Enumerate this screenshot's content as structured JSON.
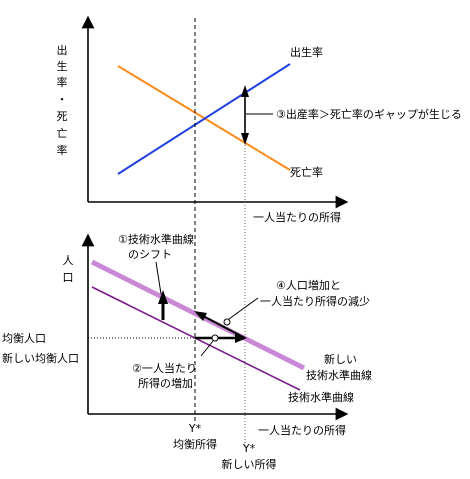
{
  "top_panel": {
    "y_axis_label": [
      "出",
      "生",
      "率",
      "・",
      "死",
      "亡",
      "率"
    ],
    "x_axis_label": "一人当たりの所得",
    "birth_rate_label": "出生率",
    "death_rate_label": "死亡率",
    "gap_annotation": "③出産率＞死亡率のギャップが生じる",
    "colors": {
      "birth_rate": "#1f3fe0",
      "death_rate": "#ff8a1a"
    }
  },
  "bottom_panel": {
    "y_axis_label": [
      "人",
      "口"
    ],
    "x_axis_label": "一人当たりの所得",
    "shift_annotation": [
      "①技術水準曲線",
      "のシフト"
    ],
    "equilibrium_population_label": "均衡人口",
    "new_equilibrium_population_label": "新しい均衡人口",
    "income_increase_annotation": [
      "②一人当たり",
      "所得の増加"
    ],
    "decrease_annotation": [
      "④人口増加と",
      "一人当たり所得の減少"
    ],
    "new_curve_label": [
      "新しい",
      "技術水準曲線"
    ],
    "old_curve_label": "技術水準曲線",
    "y_star_label": "Y*",
    "equilibrium_income_label": "均衡所得",
    "y_star_new_label": "Y*",
    "new_income_label": "新しい所得",
    "colors": {
      "old_curve": "#7a1a8c",
      "new_curve": "#c989d6"
    }
  }
}
